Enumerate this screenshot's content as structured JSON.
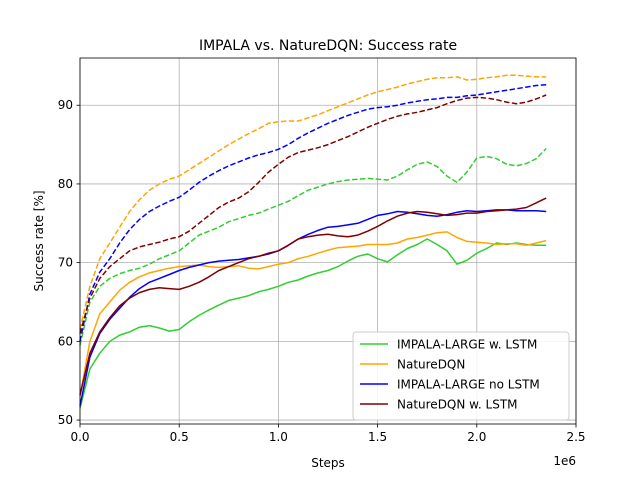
{
  "chart_data": {
    "type": "line",
    "title": "IMPALA vs. NatureDQN: Success rate",
    "xlabel": "Steps",
    "ylabel": "Success rate [%]",
    "x_multiplier": "1e6",
    "xlim": [
      0,
      2500000
    ],
    "ylim": [
      49.5,
      96
    ],
    "xticks": [
      0,
      500000,
      1000000,
      1500000,
      2000000,
      2500000
    ],
    "xtick_labels": [
      "0.0",
      "0.5",
      "1.0",
      "1.5",
      "2.0",
      "2.5"
    ],
    "yticks": [
      50,
      60,
      70,
      80,
      90
    ],
    "ytick_labels": [
      "50",
      "60",
      "70",
      "80",
      "90"
    ],
    "grid": true,
    "legend_position": "lower-right",
    "x": [
      0,
      50000,
      100000,
      150000,
      200000,
      250000,
      300000,
      350000,
      400000,
      450000,
      500000,
      550000,
      600000,
      650000,
      700000,
      750000,
      800000,
      850000,
      900000,
      950000,
      1000000,
      1050000,
      1100000,
      1150000,
      1200000,
      1250000,
      1300000,
      1350000,
      1400000,
      1450000,
      1500000,
      1550000,
      1600000,
      1650000,
      1700000,
      1750000,
      1800000,
      1850000,
      1900000,
      1950000,
      2000000,
      2050000,
      2100000,
      2150000,
      2200000,
      2250000,
      2300000,
      2350000
    ],
    "series": [
      {
        "name": "IMPALA-LARGE w. LSTM",
        "color": "#32cd32",
        "style": "solid",
        "values": [
          51.5,
          56.5,
          58.5,
          60,
          60.8,
          61.2,
          61.8,
          62,
          61.7,
          61.3,
          61.5,
          62.5,
          63.3,
          64,
          64.6,
          65.2,
          65.5,
          65.8,
          66.3,
          66.6,
          67,
          67.5,
          67.8,
          68.3,
          68.7,
          69,
          69.5,
          70.2,
          70.8,
          71.1,
          70.5,
          70.1,
          71,
          71.8,
          72.3,
          73,
          72.3,
          71.5,
          69.8,
          70.3,
          71.2,
          71.8,
          72.5,
          72.3,
          72.5,
          72.3,
          72.2,
          72.2
        ]
      },
      {
        "name": "IMPALA-LARGE w. LSTM",
        "color": "#32cd32",
        "style": "dashed",
        "values": [
          59.5,
          65,
          67,
          68,
          68.6,
          69,
          69.3,
          69.8,
          70.5,
          71,
          71.5,
          72.5,
          73.5,
          74,
          74.5,
          75.2,
          75.6,
          76,
          76.3,
          76.8,
          77.3,
          77.8,
          78.5,
          79.2,
          79.6,
          80,
          80.3,
          80.5,
          80.6,
          80.7,
          80.6,
          80.5,
          81,
          81.8,
          82.5,
          82.8,
          82.2,
          81,
          80.2,
          81.5,
          83.3,
          83.5,
          83.2,
          82.5,
          82.3,
          82.6,
          83.2,
          84.5
        ]
      },
      {
        "name": "NatureDQN",
        "color": "#ffa500",
        "style": "solid",
        "values": [
          53,
          60,
          63.5,
          65,
          66.5,
          67.5,
          68.2,
          68.7,
          69,
          69.3,
          69.5,
          69.6,
          69.7,
          69.5,
          69.4,
          69.5,
          69.6,
          69.3,
          69.2,
          69.5,
          69.8,
          70,
          70.5,
          70.8,
          71.2,
          71.6,
          71.9,
          72,
          72.1,
          72.3,
          72.3,
          72.3,
          72.5,
          73,
          73.2,
          73.5,
          73.8,
          73.9,
          73.2,
          72.7,
          72.6,
          72.5,
          72.3,
          72.4,
          72.4,
          72.2,
          72.5,
          72.8
        ]
      },
      {
        "name": "NatureDQN",
        "color": "#ffa500",
        "style": "dashed",
        "values": [
          61.5,
          67,
          70.5,
          72.5,
          74.5,
          76.5,
          78,
          79.2,
          80,
          80.6,
          81,
          81.8,
          82.6,
          83.4,
          84.2,
          85,
          85.7,
          86.4,
          87,
          87.7,
          87.9,
          88,
          88,
          88.4,
          88.8,
          89.3,
          89.8,
          90.3,
          90.8,
          91.3,
          91.7,
          92,
          92.3,
          92.7,
          93,
          93.3,
          93.5,
          93.5,
          93.6,
          93.2,
          93.3,
          93.5,
          93.6,
          93.8,
          93.8,
          93.7,
          93.6,
          93.6
        ]
      },
      {
        "name": "IMPALA-LARGE no LSTM",
        "color": "#0000ff",
        "style": "solid",
        "values": [
          51.8,
          58,
          61,
          62.8,
          64.2,
          65.6,
          66.7,
          67.5,
          68,
          68.5,
          69,
          69.4,
          69.7,
          70,
          70.2,
          70.3,
          70.4,
          70.6,
          70.8,
          71.1,
          71.5,
          72.2,
          73,
          73.6,
          74.1,
          74.5,
          74.6,
          74.8,
          75,
          75.5,
          76,
          76.2,
          76.5,
          76.4,
          76.2,
          76,
          75.9,
          76.1,
          76.4,
          76.6,
          76.5,
          76.6,
          76.7,
          76.7,
          76.6,
          76.6,
          76.6,
          76.5
        ]
      },
      {
        "name": "IMPALA-LARGE no LSTM",
        "color": "#0000ff",
        "style": "dashed",
        "values": [
          60,
          66,
          68.8,
          70.5,
          72.5,
          74.2,
          75.5,
          76.5,
          77.2,
          77.8,
          78.3,
          79.2,
          80.2,
          81,
          81.7,
          82.3,
          82.8,
          83.3,
          83.7,
          84,
          84.4,
          85,
          85.8,
          86.5,
          87.1,
          87.7,
          88.2,
          88.7,
          89.1,
          89.5,
          89.7,
          89.8,
          90,
          90.3,
          90.5,
          90.7,
          90.8,
          91,
          91,
          91.2,
          91.3,
          91.5,
          91.7,
          91.9,
          92.1,
          92.3,
          92.5,
          92.6
        ]
      },
      {
        "name": "NatureDQN w. LSTM",
        "color": "#800000",
        "style": "solid",
        "values": [
          53.2,
          58.5,
          61.2,
          63,
          64.5,
          65.5,
          66.2,
          66.6,
          66.8,
          66.7,
          66.6,
          67,
          67.5,
          68.2,
          69,
          69.5,
          70,
          70.5,
          70.8,
          71.2,
          71.5,
          72.2,
          73,
          73.3,
          73.5,
          73.6,
          73.4,
          73.3,
          73.5,
          74,
          74.6,
          75.3,
          75.9,
          76.3,
          76.5,
          76.4,
          76.2,
          76,
          76.1,
          76.3,
          76.3,
          76.5,
          76.6,
          76.7,
          76.8,
          77,
          77.6,
          78.2
        ]
      },
      {
        "name": "NatureDQN w. LSTM",
        "color": "#800000",
        "style": "dashed",
        "values": [
          61,
          65.5,
          68,
          69.5,
          70.5,
          71.5,
          72,
          72.3,
          72.6,
          73,
          73.3,
          74,
          75,
          76,
          77,
          77.7,
          78.2,
          79,
          80.2,
          81.5,
          82.5,
          83.4,
          84,
          84.3,
          84.6,
          85,
          85.5,
          86,
          86.6,
          87.2,
          87.7,
          88.2,
          88.6,
          88.9,
          89.1,
          89.4,
          89.7,
          90.2,
          90.6,
          90.9,
          91,
          90.9,
          90.7,
          90.4,
          90.2,
          90.4,
          90.8,
          91.3
        ]
      }
    ],
    "legend": [
      {
        "name": "IMPALA-LARGE w. LSTM",
        "color": "#32cd32"
      },
      {
        "name": "NatureDQN",
        "color": "#ffa500"
      },
      {
        "name": "IMPALA-LARGE no LSTM",
        "color": "#0000ff"
      },
      {
        "name": "NatureDQN w. LSTM",
        "color": "#800000"
      }
    ]
  }
}
